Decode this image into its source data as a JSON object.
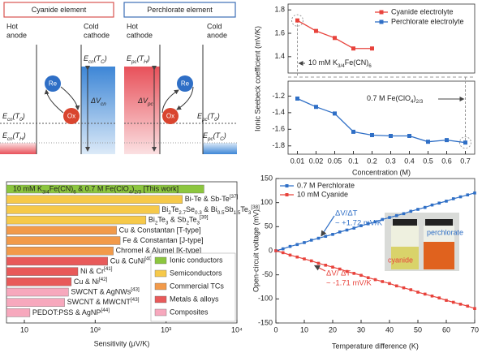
{
  "diagram": {
    "panels": [
      {
        "title": "Cyanide element",
        "left": [
          "Hot",
          "anode"
        ],
        "right": [
          "Cold",
          "cathode"
        ],
        "top_level": [
          "E",
          {
            "sub": "cn"
          },
          "(T",
          {
            "sub": "C"
          },
          ")"
        ],
        "delta": [
          "ΔV",
          {
            "sub": "cn"
          }
        ],
        "mid_level": [
          "E",
          {
            "sub": "cn"
          },
          "(T",
          {
            "sub": "0"
          },
          ")"
        ],
        "low_level": [
          "E",
          {
            "sub": "cn"
          },
          "(T",
          {
            "sub": "H"
          },
          ")"
        ],
        "re": "Re",
        "ox": "Ox"
      },
      {
        "title": "Perchlorate element",
        "left": [
          "Hot",
          "cathode"
        ],
        "right": [
          "Cold",
          "anode"
        ],
        "top_level": [
          "E",
          {
            "sub": "pc"
          },
          "(T",
          {
            "sub": "H"
          },
          ")"
        ],
        "delta": [
          "ΔV",
          {
            "sub": "pc"
          }
        ],
        "mid_level": [
          "E",
          {
            "sub": "pc"
          },
          "(T",
          {
            "sub": "0"
          },
          ")"
        ],
        "low_level": [
          "E",
          {
            "sub": "pc"
          },
          "(T",
          {
            "sub": "C"
          },
          ")"
        ],
        "re": "Re",
        "ox": "Ox"
      }
    ]
  },
  "chart_data": [
    {
      "type": "line",
      "categories": [
        "0.01",
        "0.02",
        "0.05",
        "0.1",
        "0.2",
        "0.3",
        "0.4",
        "0.5",
        "0.6",
        "0.7"
      ],
      "series": [
        {
          "name": "Cyanide electrolyte",
          "color": "#e8433c",
          "values": [
            1.71,
            1.62,
            1.56,
            1.47,
            1.47,
            null,
            null,
            null,
            null,
            null
          ]
        },
        {
          "name": "Perchlorate electrolyte",
          "color": "#2f6fc6",
          "values": [
            -1.23,
            -1.33,
            -1.41,
            -1.63,
            -1.67,
            -1.68,
            -1.68,
            -1.75,
            -1.73,
            -1.76
          ]
        }
      ],
      "ylim_upper": [
        1.26,
        1.85
      ],
      "ylim_lower": [
        -1.9,
        -1.02
      ],
      "yticks": [
        1.8,
        1.6,
        1.4,
        -1.2,
        -1.4,
        -1.6,
        -1.8
      ],
      "xlabel": "Concentration (M)",
      "ylabel": "Ionic Seebeck coefficient (mV/K)",
      "annotations": [
        [
          "10 mM K",
          {
            "sub": "3/4"
          },
          "Fe(CN)",
          {
            "sub": "6"
          }
        ],
        [
          "0.7 M Fe(ClO",
          {
            "sub": "4"
          },
          ")",
          {
            "sub": "2/3"
          }
        ]
      ]
    },
    {
      "type": "hbar",
      "xscale": "log",
      "xlim": [
        5.6,
        10000
      ],
      "xticks": [
        10,
        {
          "value": 100,
          "label": "10²"
        },
        {
          "value": 1000,
          "label": "10³"
        },
        {
          "value": 10000,
          "label": "10⁴"
        }
      ],
      "xlabel": "Sensitivity (μV/K)",
      "categories": [
        [
          "10 mM K",
          {
            "sub": "3/4"
          },
          "Fe(CN)",
          {
            "sub": "6"
          },
          " & 0.7 M Fe(ClO",
          {
            "sub": "4"
          },
          ")",
          {
            "sub": "2/3"
          },
          " [This work]"
        ],
        [
          "Bi-Te & Sb-Te",
          {
            "sup": "[37]"
          }
        ],
        [
          "Bi",
          {
            "sub": "2"
          },
          "Te",
          {
            "sub": "2.7"
          },
          "Se",
          {
            "sub": "0.3"
          },
          " & Bi",
          {
            "sub": "0.5"
          },
          "Sb",
          {
            "sub": "1.5"
          },
          "Te",
          {
            "sub": "3"
          },
          {
            "sup": "[38]"
          }
        ],
        [
          "Bi",
          {
            "sub": "2"
          },
          "Te",
          {
            "sub": "3"
          },
          " & Sb",
          {
            "sub": "2"
          },
          "Te",
          {
            "sub": "3"
          },
          {
            "sup": "[39]"
          }
        ],
        [
          "Cu & Constantan [T-type]"
        ],
        [
          "Fe & Constantan [J-type]"
        ],
        [
          "Chromel & Alumel [K-type]"
        ],
        [
          "Cu & CuNi",
          {
            "sup": "[40]"
          }
        ],
        [
          "Ni & Cr",
          {
            "sup": "[41]"
          }
        ],
        [
          "Cu & Ni",
          {
            "sup": "[42]"
          }
        ],
        [
          "SWCNT & AgNWs",
          {
            "sup": "[43]"
          }
        ],
        [
          "SWCNT & MWCNT",
          {
            "sup": "[43]"
          }
        ],
        [
          "PEDOT:PSS & AgNP",
          {
            "sup": "[44]"
          }
        ]
      ],
      "series": [
        {
          "name": "Ionic conductors",
          "color": "#8cc63f",
          "values": [
            3430,
            null,
            null,
            null,
            null,
            null,
            null,
            null,
            null,
            null,
            null,
            null,
            null
          ]
        },
        {
          "name": "Semiconductors",
          "color": "#f6c94a",
          "values": [
            null,
            1700,
            800,
            520,
            null,
            null,
            null,
            null,
            null,
            null,
            null,
            null,
            null
          ]
        },
        {
          "name": "Commercial TCs",
          "color": "#f29a4a",
          "values": [
            null,
            null,
            null,
            null,
            200,
            225,
            180,
            null,
            null,
            null,
            null,
            null,
            null
          ]
        },
        {
          "name": "Metals & alloys",
          "color": "#e85a5a",
          "values": [
            null,
            null,
            null,
            null,
            null,
            null,
            null,
            150,
            57,
            46,
            null,
            null,
            null
          ]
        },
        {
          "name": "Composites",
          "color": "#f7a8bd",
          "values": [
            null,
            null,
            null,
            null,
            null,
            null,
            null,
            null,
            null,
            null,
            42,
            37,
            12
          ]
        }
      ]
    },
    {
      "type": "line",
      "x": [
        0,
        2.5,
        5,
        7.5,
        10,
        12.5,
        15,
        17.5,
        20,
        22.5,
        25,
        27.5,
        30,
        32.5,
        35,
        37.5,
        40,
        42.5,
        45,
        47.5,
        50,
        52.5,
        55,
        57.5,
        60,
        62.5,
        65,
        67.5,
        70
      ],
      "series": [
        {
          "name": "0.7 M Perchlorate",
          "color": "#2f6fc6",
          "values": [
            0,
            4,
            9,
            13,
            17,
            22,
            26,
            30,
            34,
            39,
            43,
            47,
            52,
            56,
            60,
            65,
            69,
            73,
            77,
            82,
            86,
            90,
            95,
            99,
            103,
            108,
            112,
            116,
            120
          ]
        },
        {
          "name": "10 mM Cyanide",
          "color": "#e8433c",
          "values": [
            0,
            -4,
            -9,
            -13,
            -17,
            -21,
            -26,
            -30,
            -34,
            -38,
            -43,
            -47,
            -51,
            -56,
            -60,
            -64,
            -68,
            -73,
            -77,
            -81,
            -86,
            -90,
            -94,
            -98,
            -103,
            -107,
            -111,
            -115,
            -120
          ]
        }
      ],
      "xlim": [
        0,
        70
      ],
      "xticks": [
        0,
        10,
        20,
        30,
        40,
        50,
        60,
        70
      ],
      "ylim": [
        -150,
        150
      ],
      "yticks": [
        -150,
        -100,
        -50,
        0,
        50,
        100,
        150
      ],
      "xlabel": "Temperature difference (K)",
      "ylabel": "Open-circuit voltage (mV)",
      "annotations": [
        {
          "text": [
            "ΔV/ΔT",
            "~ +1.72 mV/K"
          ],
          "color": "#2f6fc6"
        },
        {
          "text": [
            "ΔV/ ΔT",
            "~ -1.71 mV/K"
          ],
          "color": "#e8433c"
        }
      ],
      "inset_labels": [
        "perchlorate",
        "cyanide"
      ]
    }
  ]
}
